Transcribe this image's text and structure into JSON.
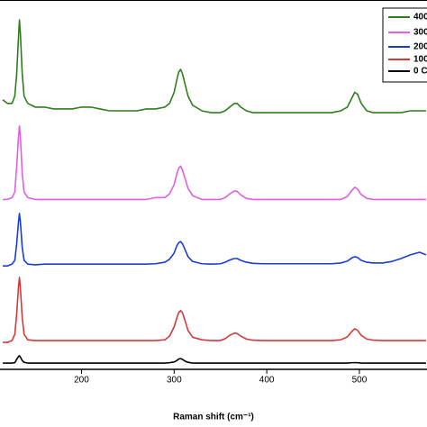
{
  "chart_data": {
    "type": "line",
    "x_label": "Raman shift (cm⁻¹)",
    "x": [
      115,
      120,
      125,
      128,
      130,
      132,
      133,
      134,
      136,
      138,
      142,
      150,
      160,
      170,
      180,
      190,
      200,
      210,
      220,
      230,
      240,
      250,
      260,
      270,
      280,
      290,
      295,
      300,
      303,
      305,
      307,
      309,
      312,
      315,
      320,
      330,
      340,
      350,
      355,
      360,
      365,
      368,
      372,
      378,
      385,
      395,
      410,
      425,
      440,
      455,
      470,
      480,
      487,
      492,
      495,
      498,
      502,
      508,
      515,
      525,
      535,
      545,
      555,
      565,
      572
    ],
    "series": [
      {
        "name": "400",
        "color": "#2e7d1e",
        "values": [
          73,
          72,
          72,
          74,
          80,
          90,
          94.6,
          91,
          80,
          74,
          72,
          71,
          71,
          70.5,
          70.5,
          70.5,
          71,
          71,
          70.5,
          70,
          70,
          70,
          70,
          70.5,
          70.5,
          71,
          72,
          75,
          78.5,
          80.5,
          81.2,
          80,
          77,
          74,
          71.5,
          70,
          69.5,
          69.5,
          70,
          71,
          72,
          72,
          71,
          70,
          69.5,
          69.5,
          69.5,
          69.5,
          69.5,
          69.5,
          69.5,
          70,
          71,
          73.5,
          75,
          74.5,
          72,
          70,
          69.5,
          69.5,
          69.5,
          69.5,
          70,
          70,
          70
        ]
      },
      {
        "name": "300",
        "color": "#e060e0",
        "values": [
          46,
          46,
          46.5,
          48,
          55,
          63,
          65.9,
          63,
          53,
          48,
          46.5,
          46,
          46,
          46,
          46,
          46,
          46,
          46,
          46,
          46,
          46,
          46,
          46,
          46,
          46.5,
          46.5,
          47.5,
          50,
          53,
          54.5,
          55,
          54,
          51.5,
          49,
          47,
          46,
          46,
          46,
          46.5,
          47.5,
          48.3,
          48.2,
          47.2,
          46.3,
          46,
          46,
          46,
          46,
          46,
          46,
          46,
          46,
          46.8,
          48.5,
          49.3,
          48.8,
          47.3,
          46.3,
          46,
          46,
          46,
          46,
          46,
          46,
          46
        ]
      },
      {
        "name": "200",
        "color": "#1a3fd0",
        "values": [
          28,
          28,
          28.5,
          29.5,
          34,
          40,
          42.2,
          40,
          33,
          29.5,
          28.5,
          28.3,
          28.5,
          28.5,
          28.5,
          28.5,
          28.5,
          28.5,
          28.5,
          28.5,
          28.5,
          28.5,
          28.5,
          28.5,
          28.6,
          29,
          29.8,
          31.5,
          33.5,
          34.3,
          34.6,
          34,
          32.3,
          30.5,
          29.2,
          28.6,
          28.5,
          28.6,
          29,
          29.6,
          30,
          30,
          29.5,
          29,
          28.7,
          28.6,
          28.6,
          28.6,
          28.6,
          28.6,
          28.6,
          28.8,
          29.3,
          30.2,
          30.5,
          30.3,
          29.5,
          29,
          28.8,
          28.8,
          29.2,
          30,
          31,
          31.7,
          31
        ]
      },
      {
        "name": "100",
        "color": "#d23a3a",
        "values": [
          7.3,
          7.3,
          7.8,
          9.5,
          15,
          22.5,
          24.9,
          22,
          14,
          9.5,
          8,
          7.8,
          7.8,
          7.8,
          7.8,
          7.8,
          7.8,
          7.8,
          7.8,
          7.8,
          7.8,
          7.8,
          7.8,
          7.8,
          7.8,
          8,
          9,
          11.5,
          14,
          15.4,
          15.9,
          15.3,
          13,
          10.5,
          8.7,
          8,
          7.8,
          7.8,
          8.3,
          9.2,
          9.8,
          9.7,
          9,
          8.2,
          7.9,
          7.8,
          7.8,
          7.8,
          7.8,
          7.8,
          7.8,
          8,
          8.8,
          10.3,
          11,
          10.6,
          9.2,
          8.2,
          7.9,
          7.8,
          7.8,
          7.8,
          7.8,
          7.8,
          7.8
        ]
      },
      {
        "name": "0 C",
        "color": "#000000",
        "values": [
          1.7,
          1.7,
          1.7,
          1.8,
          2.7,
          3.5,
          3.7,
          3.3,
          2.4,
          1.9,
          1.7,
          1.7,
          1.7,
          1.7,
          1.7,
          1.7,
          1.7,
          1.7,
          1.7,
          1.7,
          1.7,
          1.7,
          1.7,
          1.7,
          1.7,
          1.7,
          1.8,
          2,
          2.4,
          2.8,
          2.9,
          2.7,
          2.2,
          1.9,
          1.7,
          1.7,
          1.7,
          1.7,
          1.7,
          1.7,
          1.7,
          1.7,
          1.7,
          1.7,
          1.7,
          1.7,
          1.7,
          1.7,
          1.7,
          1.7,
          1.7,
          1.7,
          1.7,
          1.8,
          1.8,
          1.8,
          1.7,
          1.7,
          1.7,
          1.7,
          1.7,
          1.7,
          1.7,
          1.7,
          1.7
        ]
      }
    ],
    "xlim": [
      112,
      573
    ],
    "xticks": [
      200,
      300,
      400,
      500
    ],
    "ylim": [
      0,
      100
    ]
  }
}
